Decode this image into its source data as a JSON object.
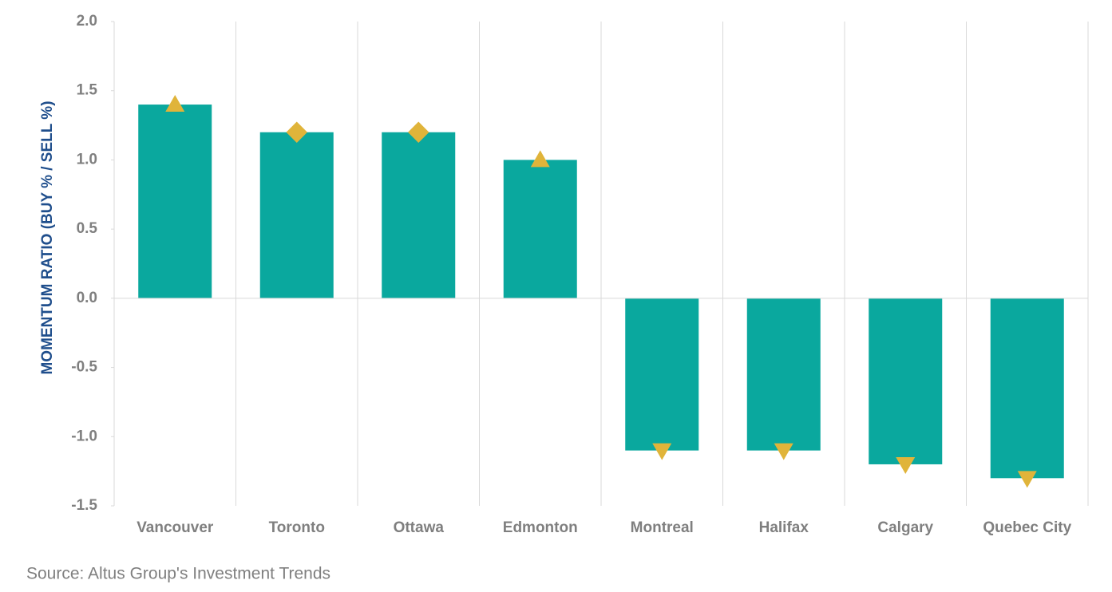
{
  "chart_data": {
    "type": "bar",
    "y_label": "MOMENTUM RATIO (BUY % / SELL %)",
    "source": "Source: Altus Group's Investment Trends",
    "categories": [
      "Vancouver",
      "Toronto",
      "Ottawa",
      "Edmonton",
      "Montreal",
      "Halifax",
      "Calgary",
      "Quebec City"
    ],
    "values": [
      1.4,
      1.2,
      1.2,
      1.0,
      -1.1,
      -1.1,
      -1.2,
      -1.3
    ],
    "color": "#0aa89e",
    "markers": [
      "triangle-up",
      "diamond",
      "diamond",
      "triangle-up",
      "triangle-down",
      "triangle-down",
      "triangle-down",
      "triangle-down"
    ],
    "marker_color": "#e0b43a",
    "ylim": [
      -1.5,
      2.0
    ],
    "yticks": [
      {
        "value": -1.5,
        "label": "-1.5"
      },
      {
        "value": -1,
        "label": "-1.0"
      },
      {
        "value": -0.5,
        "label": "-0.5"
      },
      {
        "value": 0,
        "label": "0.0"
      },
      {
        "value": 0.5,
        "label": "0.5"
      },
      {
        "value": 1,
        "label": "1.0"
      },
      {
        "value": 1.5,
        "label": "1.5"
      },
      {
        "value": 2,
        "label": "2.0"
      }
    ],
    "grid": false
  }
}
